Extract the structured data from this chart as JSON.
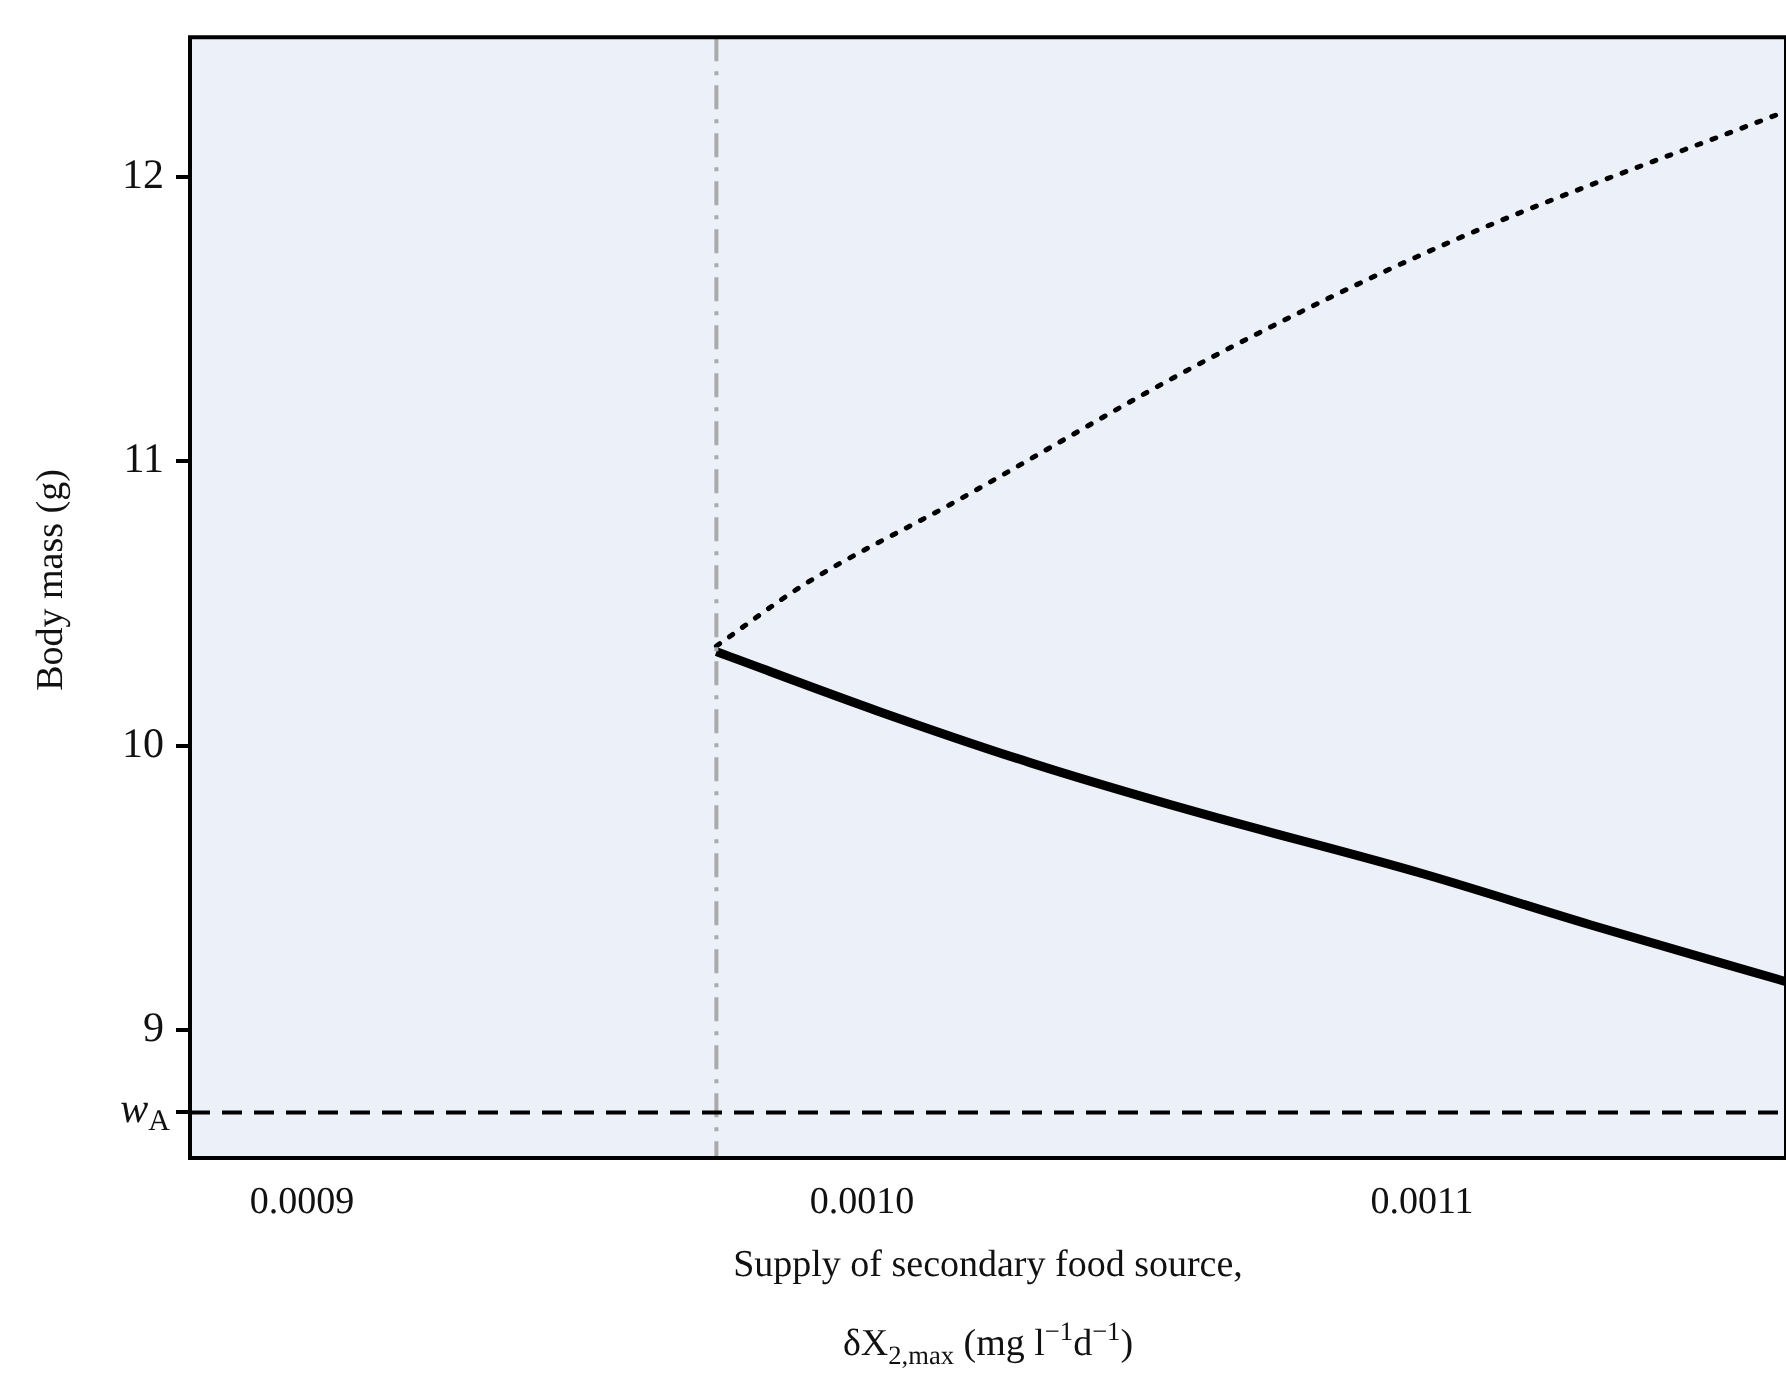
{
  "chart_data": {
    "type": "line",
    "xlabel": "Supply of secondary food source,\nδX$_{2,max}$ (mg l$^{−1}$d$^{−1}$)",
    "ylabel": "Body mass (g)",
    "xlim": [
      0.00088,
      0.001165
    ],
    "xticks": [
      0.0009,
      {
        "value": 0.001,
        "label": "0.0010"
      },
      0.0011
    ],
    "ylim": [
      8.55,
      12.49
    ],
    "yticks": [
      {
        "value": 8.71,
        "label": "w$_{A}$"
      },
      9,
      10,
      11,
      12
    ],
    "series": [
      {
        "color": "#000000",
        "line_style": "solid",
        "x": [
          0.000974,
          0.001003,
          0.00103,
          0.001059,
          0.0011,
          0.00113,
          0.001165
        ],
        "values": [
          10.33,
          10.12,
          9.94,
          9.77,
          9.55,
          9.37,
          9.17
        ]
      },
      {
        "color": "#000000",
        "line_style": "dotted",
        "x": [
          0.000974,
          0.00099,
          0.001016,
          0.001062,
          0.001105,
          0.001165
        ],
        "values": [
          10.35,
          10.57,
          10.85,
          11.36,
          11.77,
          12.23
        ]
      }
    ],
    "ref_lines": [
      {
        "axis": "x",
        "value": 0.000974,
        "color": "#aaaaaa",
        "line_style": "dashed"
      },
      {
        "axis": "y",
        "value": 8.71,
        "color": "#000000",
        "line_style": "dashed"
      }
    ],
    "grid": false,
    "legend": false,
    "marker": "none"
  }
}
